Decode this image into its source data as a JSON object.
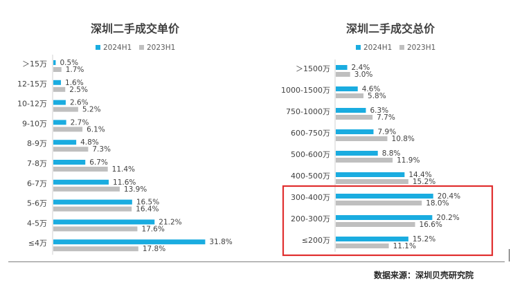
{
  "source_text": "数据来源：深圳贝壳研究院",
  "colors": {
    "series_2024": "#1AACE0",
    "series_2023": "#BFBFBF",
    "highlight": "#E02E2E"
  },
  "chart_data": [
    {
      "type": "bar",
      "orientation": "horizontal",
      "title": "深圳二手成交单价",
      "categories": [
        "＞15万",
        "12-15万",
        "10-12万",
        "9-10万",
        "8-9万",
        "7-8万",
        "6-7万",
        "5-6万",
        "4-5万",
        "≤4万"
      ],
      "series": [
        {
          "name": "2024H1",
          "values": [
            0.5,
            1.6,
            2.6,
            2.7,
            4.8,
            6.7,
            11.6,
            16.5,
            21.2,
            31.8
          ],
          "labels": [
            "0.5%",
            "1.6%",
            "2.6%",
            "2.7%",
            "4.8%",
            "6.7%",
            "11.6%",
            "16.5%",
            "21.2%",
            "31.8%"
          ]
        },
        {
          "name": "2023H1",
          "values": [
            1.7,
            2.5,
            5.2,
            6.1,
            7.3,
            11.4,
            13.9,
            16.4,
            17.6,
            17.8
          ],
          "labels": [
            "1.7%",
            "2.5%",
            "5.2%",
            "6.1%",
            "7.3%",
            "11.4%",
            "13.9%",
            "16.4%",
            "17.6%",
            "17.8%"
          ]
        }
      ],
      "legend_position": "top"
    },
    {
      "type": "bar",
      "orientation": "horizontal",
      "title": "深圳二手成交总价",
      "categories": [
        "＞1500万",
        "1000-1500万",
        "750-1000万",
        "600-750万",
        "500-600万",
        "400-500万",
        "300-400万",
        "200-300万",
        "≤200万"
      ],
      "series": [
        {
          "name": "2024H1",
          "values": [
            2.4,
            4.6,
            6.3,
            7.9,
            8.8,
            14.4,
            20.4,
            20.2,
            15.2
          ],
          "labels": [
            "2.4%",
            "4.6%",
            "6.3%",
            "7.9%",
            "8.8%",
            "14.4%",
            "20.4%",
            "20.2%",
            "15.2%"
          ]
        },
        {
          "name": "2023H1",
          "values": [
            3.0,
            5.8,
            7.7,
            10.8,
            11.9,
            15.2,
            18.0,
            16.6,
            11.1
          ],
          "labels": [
            "3.0%",
            "5.8%",
            "7.7%",
            "10.8%",
            "11.9%",
            "15.2%",
            "18.0%",
            "16.6%",
            "11.1%"
          ]
        }
      ],
      "legend_position": "top",
      "highlighted_categories": [
        "300-400万",
        "200-300万",
        "≤200万"
      ]
    }
  ]
}
